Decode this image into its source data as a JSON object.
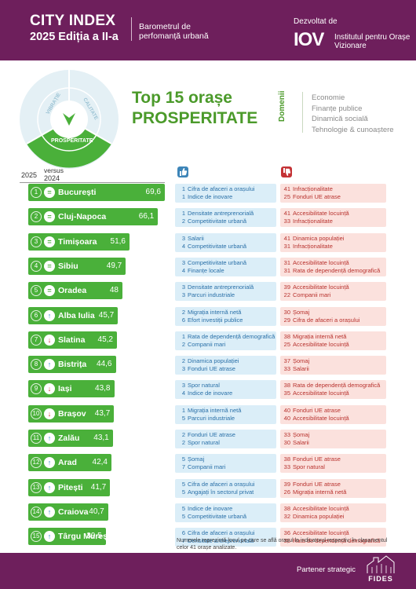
{
  "header": {
    "title": "CITY INDEX",
    "subtitle": "2025 Ediția a II-a",
    "description": "Barometrul de perfomanță urbană",
    "developed_by": "Dezvoltat de",
    "logo_text": "IOV",
    "institute": "Institutul pentru Orașe Vizionare"
  },
  "wheel": {
    "segments": [
      "PROSPERITATE",
      "CALITATE",
      "VIBRAȚIE"
    ],
    "highlight": "PROSPERITATE",
    "colors": {
      "highlight": "#4ab03a",
      "muted": "#d7e9f0"
    }
  },
  "title": {
    "line1": "Top 15 orașe",
    "line2": "PROSPERITATE"
  },
  "domains": {
    "label": "Domenii",
    "items": [
      "Economie",
      "Finanțe publice",
      "Dinamică socială",
      "Tehnologie & cunoaștere"
    ]
  },
  "columns": {
    "current_year": "2025",
    "versus": "versus",
    "previous_year": "2024"
  },
  "colors": {
    "header": "#6e1f5c",
    "bar": "#4ab03a",
    "positive_bg": "#dbeef8",
    "negative_bg": "#fbe1dd",
    "title_green": "#4b9a2a"
  },
  "chart_data": {
    "type": "bar",
    "title": "Top 15 orașe PROSPERITATE",
    "orientation": "horizontal",
    "categories": [
      "București",
      "Cluj-Napoca",
      "Timișoara",
      "Sibiu",
      "Oradea",
      "Alba Iulia",
      "Slatina",
      "Bistrița",
      "Iași",
      "Brașov",
      "Zalău",
      "Arad",
      "Pitești",
      "Craiova",
      "Târgu Mureș"
    ],
    "values": [
      69.6,
      66.1,
      51.6,
      49.7,
      48,
      45.7,
      45.2,
      44.6,
      43.8,
      43.7,
      43.1,
      42.4,
      41.7,
      40.7,
      39.5
    ],
    "value_labels": [
      "69,6",
      "66,1",
      "51,6",
      "49,7",
      "48",
      "45,7",
      "45,2",
      "44,6",
      "43,8",
      "43,7",
      "43,1",
      "42,4",
      "41,7",
      "40,7",
      "39,5"
    ],
    "ranks": [
      1,
      2,
      3,
      4,
      5,
      6,
      7,
      8,
      9,
      10,
      11,
      12,
      13,
      14,
      15
    ],
    "change_vs_2024": [
      "same",
      "same",
      "same",
      "same",
      "same",
      "up",
      "down",
      "up",
      "down",
      "down",
      "up",
      "up",
      "up",
      "up",
      "up"
    ],
    "xlim": [
      0,
      70
    ]
  },
  "rows": [
    {
      "pos": [
        [
          "1",
          "Cifra de afaceri a orașului"
        ],
        [
          "1",
          "Indice de inovare"
        ]
      ],
      "neg": [
        [
          "41",
          "Infracționalitate"
        ],
        [
          "25",
          "Fonduri UE atrase"
        ]
      ]
    },
    {
      "pos": [
        [
          "1",
          "Densitate antreprenorială"
        ],
        [
          "2",
          "Competitivitate urbană"
        ]
      ],
      "neg": [
        [
          "41",
          "Accesibilitate locuință"
        ],
        [
          "33",
          "Infracționalitate"
        ]
      ]
    },
    {
      "pos": [
        [
          "3",
          "Salarii"
        ],
        [
          "4",
          "Competitivitate urbană"
        ]
      ],
      "neg": [
        [
          "41",
          "Dinamica populației"
        ],
        [
          "31",
          "Infracționalitate"
        ]
      ]
    },
    {
      "pos": [
        [
          "3",
          "Competitivitate urbană"
        ],
        [
          "4",
          "Finanțe locale"
        ]
      ],
      "neg": [
        [
          "31",
          "Accesibilitate locuință"
        ],
        [
          "31",
          "Rata de dependență demografică"
        ]
      ]
    },
    {
      "pos": [
        [
          "3",
          "Densitate antreprenorială"
        ],
        [
          "3",
          "Parcuri industriale"
        ]
      ],
      "neg": [
        [
          "39",
          "Accesibilitate locuință"
        ],
        [
          "22",
          "Companii mari"
        ]
      ]
    },
    {
      "pos": [
        [
          "2",
          "Migrația internă netă"
        ],
        [
          "6",
          "Efort investiții publice"
        ]
      ],
      "neg": [
        [
          "30",
          "Șomaj"
        ],
        [
          "29",
          "Cifra de afaceri a orașului"
        ]
      ]
    },
    {
      "pos": [
        [
          "1",
          "Rata de dependență demografică"
        ],
        [
          "2",
          "Companii mari"
        ]
      ],
      "neg": [
        [
          "38",
          "Migrația internă netă"
        ],
        [
          "25",
          "Accesibilitate locuință"
        ]
      ]
    },
    {
      "pos": [
        [
          "2",
          "Dinamica populației"
        ],
        [
          "3",
          "Fonduri UE atrase"
        ]
      ],
      "neg": [
        [
          "37",
          "Șomaj"
        ],
        [
          "33",
          "Salarii"
        ]
      ]
    },
    {
      "pos": [
        [
          "3",
          "Spor natural"
        ],
        [
          "4",
          "Indice de inovare"
        ]
      ],
      "neg": [
        [
          "38",
          "Rata de dependență demografică"
        ],
        [
          "35",
          "Accesibilitate locuință"
        ]
      ]
    },
    {
      "pos": [
        [
          "1",
          "Migrația internă netă"
        ],
        [
          "5",
          "Parcuri industriale"
        ]
      ],
      "neg": [
        [
          "40",
          "Fonduri UE atrase"
        ],
        [
          "40",
          "Accesibilitate locuință"
        ]
      ]
    },
    {
      "pos": [
        [
          "2",
          "Fonduri UE atrase"
        ],
        [
          "2",
          "Spor natural"
        ]
      ],
      "neg": [
        [
          "33",
          "Șomaj"
        ],
        [
          "30",
          "Salarii"
        ]
      ]
    },
    {
      "pos": [
        [
          "5",
          "Șomaj"
        ],
        [
          "7",
          "Companii mari"
        ]
      ],
      "neg": [
        [
          "38",
          "Fonduri UE atrase"
        ],
        [
          "33",
          "Spor natural"
        ]
      ]
    },
    {
      "pos": [
        [
          "5",
          "Cifra de afaceri a orașului"
        ],
        [
          "5",
          "Angajați în sectorul privat"
        ]
      ],
      "neg": [
        [
          "39",
          "Fonduri UE atrase"
        ],
        [
          "26",
          "Migrația internă netă"
        ]
      ]
    },
    {
      "pos": [
        [
          "5",
          "Indice de inovare"
        ],
        [
          "5",
          "Competitivitate urbană"
        ]
      ],
      "neg": [
        [
          "38",
          "Accesibilitate locuință"
        ],
        [
          "32",
          "Dinamica populației"
        ]
      ]
    },
    {
      "pos": [
        [
          "6",
          "Cifra de afaceri a orașului"
        ],
        [
          "7",
          "Densitate antreprenorială"
        ]
      ],
      "neg": [
        [
          "36",
          "Accesibilitate locuință"
        ],
        [
          "36",
          "Rata de dependență demografică"
        ]
      ]
    }
  ],
  "footnote": "Numerele reprezintă locul pe care se află orașul la indicatorul respectiv, în clasamentul celor 41 orașe analizate.",
  "footer": {
    "partner": "Partener strategic",
    "partner_logo": "FIDES"
  }
}
